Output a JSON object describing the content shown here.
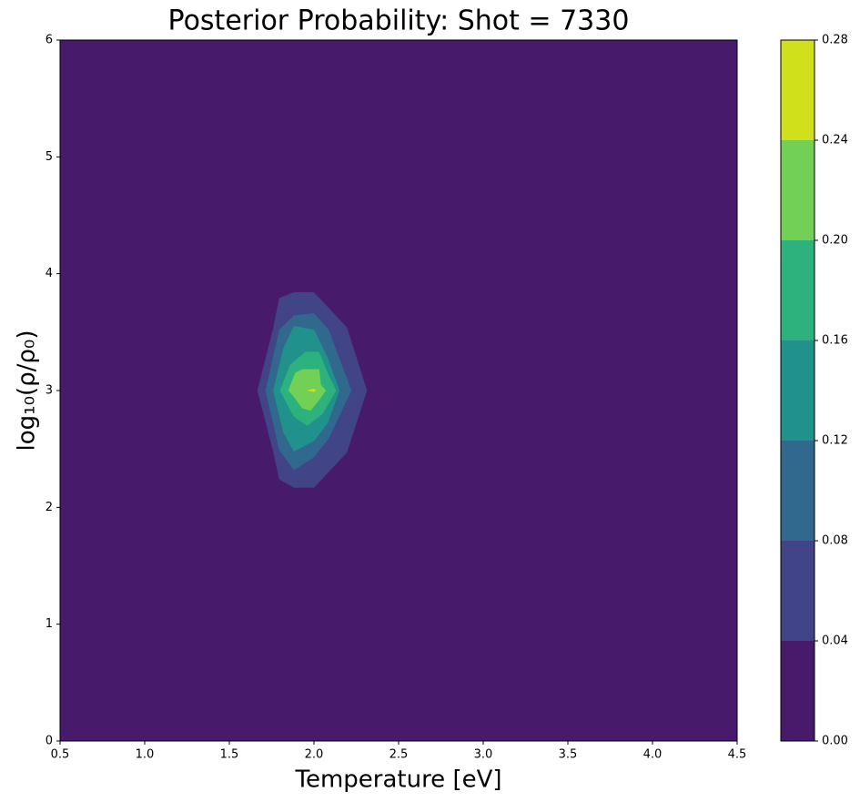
{
  "chart_data": {
    "type": "contour",
    "title": "Posterior Probability: Shot = 7330",
    "x_label": "Temperature [eV]",
    "y_label": "log₁₀(ρ/ρ₀)",
    "xlim": [
      0.5,
      4.5
    ],
    "ylim": [
      0,
      6
    ],
    "xticks": [
      0.5,
      {
        "value": 1,
        "label": "1.0"
      },
      1.5,
      {
        "value": 2,
        "label": "2.0"
      },
      2.5,
      {
        "value": 3,
        "label": "3.0"
      },
      3.5,
      {
        "value": 4,
        "label": "4.0"
      },
      4.5
    ],
    "yticks": [
      0,
      1,
      2,
      3,
      4,
      5,
      6
    ],
    "levels": [
      0,
      0.04,
      0.08,
      0.12,
      0.16,
      0.2,
      0.24,
      0.28
    ],
    "colorbar_ticks": [
      {
        "value": 0,
        "label": "0.00"
      },
      {
        "value": 0.04,
        "label": "0.04"
      },
      {
        "value": 0.08,
        "label": "0.08"
      },
      {
        "value": 0.12,
        "label": "0.12"
      },
      {
        "value": 0.16,
        "label": "0.16"
      },
      {
        "value": 0.2,
        "label": "0.20"
      },
      {
        "value": 0.24,
        "label": "0.24"
      },
      {
        "value": 0.28,
        "label": "0.28"
      }
    ],
    "colors": [
      "#481a6c",
      "#414487",
      "#31688e",
      "#21918c",
      "#2db27d",
      "#73d056",
      "#d0e11c"
    ],
    "regions": [
      {
        "x": [
          1.667,
          1.758,
          1.796,
          1.882,
          2.0,
          2.194,
          2.312,
          2.194,
          2.0,
          1.882,
          1.796,
          1.758
        ],
        "y": [
          3.0,
          3.52,
          3.79,
          3.84,
          3.84,
          3.54,
          3.0,
          2.47,
          2.17,
          2.17,
          2.24,
          2.49
        ]
      },
      {
        "x": [
          1.715,
          1.796,
          1.882,
          2.0,
          2.086,
          2.22,
          2.086,
          2.0,
          1.882,
          1.796
        ],
        "y": [
          3.0,
          3.52,
          3.64,
          3.66,
          3.52,
          3.0,
          2.59,
          2.43,
          2.32,
          2.49
        ]
      },
      {
        "x": [
          1.76,
          1.82,
          1.882,
          2.0,
          2.08,
          2.15,
          2.08,
          2.0,
          1.882,
          1.82
        ],
        "y": [
          3.0,
          3.36,
          3.55,
          3.52,
          3.28,
          3.0,
          2.72,
          2.57,
          2.48,
          2.64
        ]
      },
      {
        "x": [
          1.8,
          1.86,
          1.95,
          2.03,
          2.08,
          2.13,
          2.05,
          1.96,
          1.88
        ],
        "y": [
          3.0,
          3.22,
          3.33,
          3.33,
          3.15,
          3.0,
          2.8,
          2.7,
          2.78
        ]
      },
      {
        "x": [
          1.85,
          1.89,
          1.93,
          2.03,
          2.04,
          2.07,
          2.02,
          1.98,
          1.93,
          1.88
        ],
        "y": [
          3.0,
          3.15,
          3.18,
          3.18,
          3.05,
          3.0,
          2.9,
          2.83,
          2.85,
          2.95
        ]
      },
      {
        "x": [
          1.96,
          2.0,
          2.01,
          2.0
        ],
        "y": [
          3.0,
          3.015,
          3.0,
          2.99
        ]
      }
    ]
  }
}
